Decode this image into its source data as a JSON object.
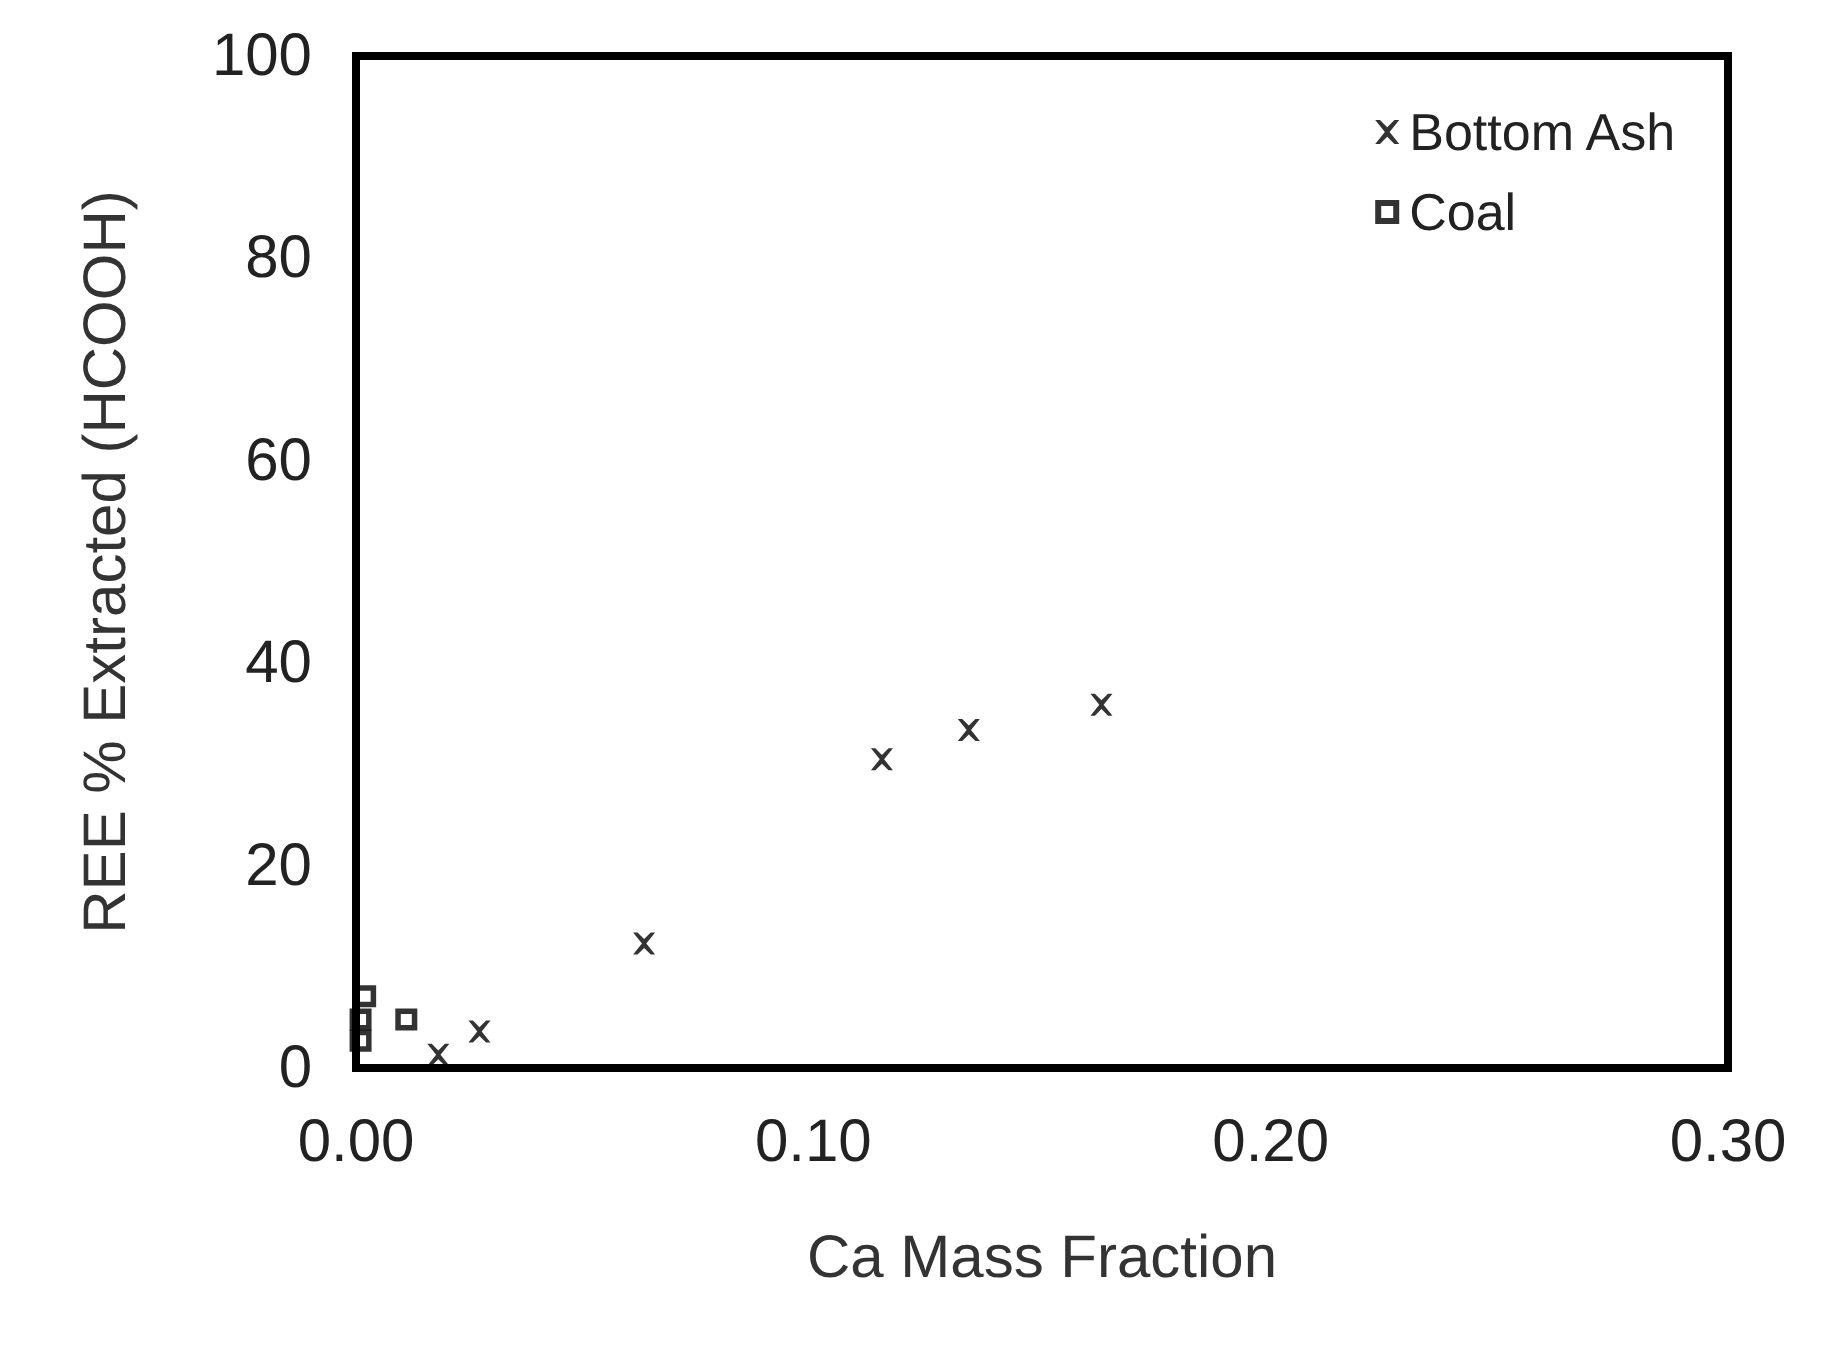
{
  "chart_data": {
    "type": "scatter",
    "xlabel": "Ca Mass Fraction",
    "ylabel": "REE % Extracted (HCOOH)",
    "xlim": [
      0,
      0.3
    ],
    "xticks": [
      {
        "value": 0,
        "label": "0.00"
      },
      {
        "value": 0.1,
        "label": "0.10"
      },
      {
        "value": 0.2,
        "label": "0.20"
      },
      {
        "value": 0.3,
        "label": "0.30"
      }
    ],
    "ylim": [
      0,
      100
    ],
    "yticks": [
      0,
      20,
      40,
      60,
      80,
      100
    ],
    "grid": false,
    "legend": "top right",
    "series": [
      {
        "name": "Bottom Ash",
        "color": "#000000",
        "marker": "cross",
        "x": [
          0.018,
          0.027,
          0.063,
          0.115,
          0.134,
          0.163
        ],
        "values": [
          1.3,
          3.6,
          12.3,
          30.5,
          33.4,
          35.9
        ]
      },
      {
        "name": "Coal",
        "color": "#000000",
        "marker": "square",
        "x": [
          0.002,
          0.001,
          0.001,
          0.011
        ],
        "values": [
          7.1,
          4.8,
          2.7,
          4.8
        ]
      }
    ]
  }
}
